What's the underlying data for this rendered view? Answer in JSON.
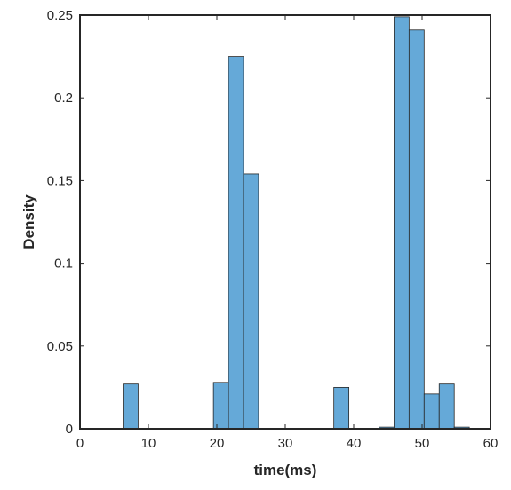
{
  "colors": {
    "bar_fill": "#65a9d8",
    "bar_stroke": "#262626",
    "axis": "#262626",
    "background": "#ffffff"
  },
  "chart_data": {
    "type": "bar",
    "title": "",
    "xlabel": "time(ms)",
    "ylabel": "Density",
    "xlim": [
      0,
      60
    ],
    "ylim": [
      0,
      0.25
    ],
    "grid": false,
    "legend": "none",
    "x_ticks": [
      0,
      10,
      20,
      30,
      40,
      50,
      60
    ],
    "x_tick_labels": [
      "0",
      "10",
      "20",
      "30",
      "40",
      "50",
      "60"
    ],
    "y_ticks": [
      0,
      0.05,
      0.1,
      0.15,
      0.2,
      0.25
    ],
    "y_tick_labels": [
      "0",
      "0.05",
      "0.1",
      "0.15",
      "0.2",
      "0.25"
    ],
    "bin_width": 2.2,
    "bins": [
      {
        "x0": 6.3,
        "x1": 8.5,
        "density": 0.027
      },
      {
        "x0": 19.5,
        "x1": 21.7,
        "density": 0.028
      },
      {
        "x0": 21.7,
        "x1": 23.9,
        "density": 0.225
      },
      {
        "x0": 23.9,
        "x1": 26.1,
        "density": 0.154
      },
      {
        "x0": 37.1,
        "x1": 39.3,
        "density": 0.025
      },
      {
        "x0": 43.7,
        "x1": 45.9,
        "density": 0.001
      },
      {
        "x0": 45.9,
        "x1": 48.1,
        "density": 0.249
      },
      {
        "x0": 48.1,
        "x1": 50.3,
        "density": 0.241
      },
      {
        "x0": 50.3,
        "x1": 52.5,
        "density": 0.021
      },
      {
        "x0": 52.5,
        "x1": 54.7,
        "density": 0.027
      },
      {
        "x0": 54.7,
        "x1": 56.9,
        "density": 0.001
      }
    ]
  }
}
